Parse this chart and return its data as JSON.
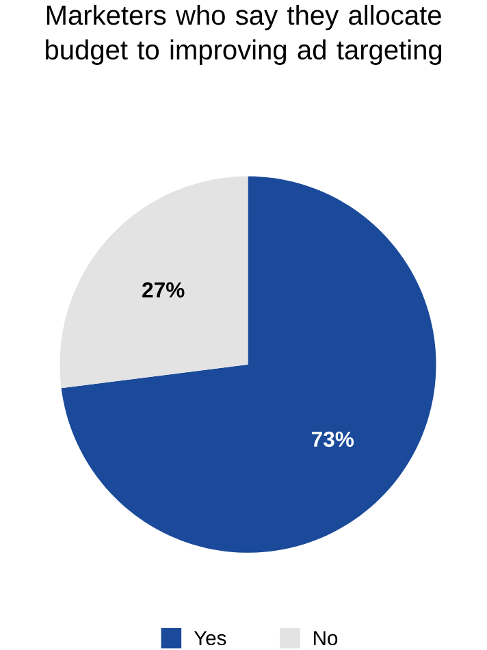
{
  "chart_data": {
    "type": "pie",
    "title": "Marketers who say they allocate budget to improving ad targeting",
    "categories": [
      "Yes",
      "No"
    ],
    "values": [
      73,
      27
    ],
    "colors": [
      "#1b4a9b",
      "#e3e3e3"
    ],
    "value_labels": [
      "73%",
      "27%"
    ],
    "legend": "bottom"
  }
}
